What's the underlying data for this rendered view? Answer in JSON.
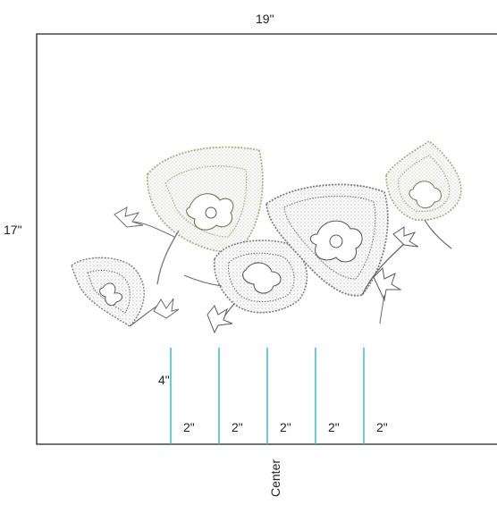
{
  "dimensions": {
    "width_label": "19\"",
    "height_label": "17\"",
    "guide_height_label": "4\"",
    "spacing_labels": [
      "2\"",
      "2\"",
      "2\"",
      "2\"",
      "2\""
    ],
    "center_label": "Center"
  },
  "colors": {
    "frame": "#222222",
    "guide_line": "#38bcd3",
    "motif_grey": "#8a8a8a",
    "motif_green": "#a8b987",
    "motif_dark": "#5a5a5a"
  },
  "motifs": [
    "leaf-motif-small-left",
    "leaf-motif-large-green",
    "leaf-motif-center",
    "leaf-motif-large-right",
    "leaf-motif-small-green-right"
  ]
}
